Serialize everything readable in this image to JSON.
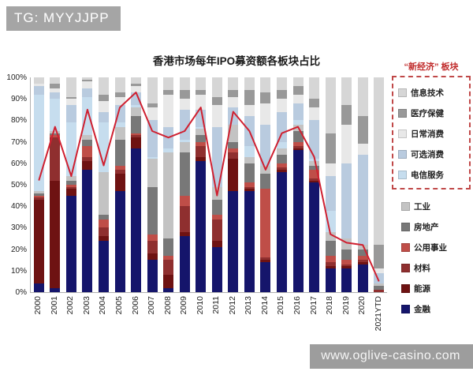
{
  "watermarks": {
    "top": "TG: MYYJJPP",
    "bottom": "www.oglive-casino.com"
  },
  "chart_data": {
    "type": "bar",
    "subtype": "stacked-100-percent-with-line",
    "title": "香港市场每年IPO募资额各板块占比",
    "y_axis": {
      "min": 0,
      "max": 100,
      "step": 10,
      "format": "percent",
      "tick_labels": [
        "0%",
        "10%",
        "20%",
        "30%",
        "40%",
        "50%",
        "60%",
        "70%",
        "80%",
        "90%",
        "100%"
      ]
    },
    "grid": false,
    "categories": [
      "2000",
      "2001",
      "2002",
      "2003",
      "2004",
      "2005",
      "2006",
      "2007",
      "2008",
      "2009",
      "2010",
      "2011",
      "2012",
      "2013",
      "2014",
      "2015",
      "2016",
      "2017",
      "2018",
      "2019",
      "2020",
      "2021YTD"
    ],
    "series": [
      {
        "name": "金融",
        "color": "#15156b",
        "values": [
          4,
          2,
          45,
          57,
          24,
          47,
          67,
          15,
          2,
          26,
          61,
          21,
          47,
          47,
          14,
          56,
          66,
          51,
          11,
          11,
          13,
          0
        ]
      },
      {
        "name": "能源",
        "color": "#6e1212",
        "values": [
          39,
          50,
          3,
          4,
          2,
          8,
          5,
          3,
          6,
          2,
          2,
          3,
          15,
          1,
          1,
          1,
          1,
          1,
          1,
          1,
          1,
          0
        ]
      },
      {
        "name": "材料",
        "color": "#8f2f2f",
        "values": [
          1,
          20,
          1,
          2,
          4,
          2,
          1,
          6,
          7,
          12,
          5,
          10,
          3,
          1,
          1,
          1,
          1,
          1,
          2,
          1,
          1,
          1
        ]
      },
      {
        "name": "公用事业",
        "color": "#bf4e48",
        "values": [
          1,
          1,
          1,
          5,
          4,
          2,
          1,
          3,
          2,
          5,
          2,
          2,
          2,
          2,
          32,
          2,
          2,
          4,
          3,
          2,
          2,
          0
        ]
      },
      {
        "name": "房地产",
        "color": "#787878",
        "values": [
          1,
          1,
          2,
          3,
          2,
          12,
          8,
          22,
          8,
          20,
          3,
          7,
          3,
          9,
          7,
          4,
          5,
          2,
          7,
          5,
          3,
          2
        ]
      },
      {
        "name": "工业",
        "color": "#c3c3c3",
        "values": [
          1,
          1,
          2,
          2,
          20,
          6,
          4,
          13,
          40,
          5,
          3,
          6,
          8,
          3,
          4,
          3,
          3,
          2,
          4,
          5,
          2,
          1
        ]
      },
      {
        "name": "电信服务",
        "color": "#c6ddee",
        "values": [
          45,
          15,
          25,
          18,
          23,
          2,
          1,
          1,
          2,
          1,
          1,
          0,
          0,
          5,
          0,
          3,
          2,
          1,
          10,
          0,
          0,
          0
        ]
      },
      {
        "name": "可选消费",
        "color": "#b9cbdf",
        "values": [
          4,
          3,
          8,
          4,
          5,
          8,
          6,
          17,
          10,
          14,
          8,
          28,
          8,
          14,
          19,
          14,
          8,
          18,
          16,
          35,
          42,
          5
        ]
      },
      {
        "name": "日常消费",
        "color": "#e8e8e8",
        "values": [
          1,
          2,
          3,
          3,
          5,
          4,
          3,
          6,
          15,
          5,
          7,
          10,
          5,
          5,
          10,
          6,
          4,
          6,
          6,
          18,
          5,
          2
        ]
      },
      {
        "name": "医疗保健",
        "color": "#999999",
        "values": [
          0,
          2,
          1,
          1,
          3,
          2,
          1,
          2,
          2,
          4,
          2,
          4,
          3,
          7,
          5,
          4,
          4,
          4,
          14,
          9,
          13,
          11
        ]
      },
      {
        "name": "信息技术",
        "color": "#d6d6d6",
        "values": [
          3,
          3,
          9,
          1,
          8,
          7,
          3,
          12,
          6,
          6,
          6,
          9,
          6,
          6,
          7,
          6,
          4,
          10,
          26,
          13,
          18,
          78
        ]
      }
    ],
    "line_series": {
      "label": "",
      "color": "#cf2030",
      "values": [
        52,
        77,
        54,
        85,
        59,
        86,
        93,
        75,
        72,
        75,
        86,
        45,
        84,
        75,
        57,
        74,
        77,
        63,
        27,
        23,
        22,
        5
      ]
    },
    "legend": {
      "position": "right",
      "header": "“新经济” 板块",
      "new_economy_items": [
        "信息技术",
        "医疗保健",
        "日常消费",
        "可选消费",
        "电信服务"
      ],
      "other_items": [
        "工业",
        "房地产",
        "公用事业",
        "材料",
        "能源",
        "金融"
      ]
    }
  }
}
